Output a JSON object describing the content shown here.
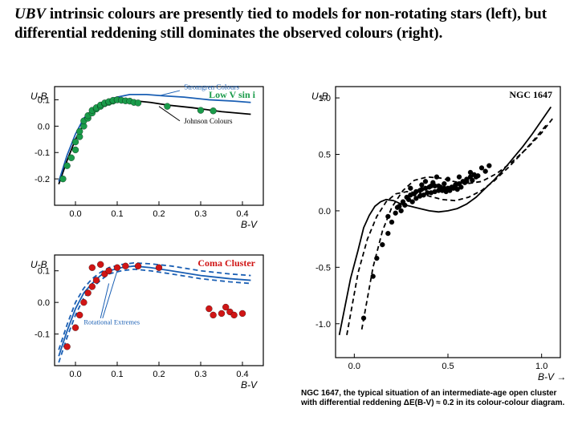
{
  "caption": {
    "html": "<span class='ital'>UBV</span> intrinsic colours are presently tied to models for non-rotating stars (left), but differential reddening still dominates the observed colours (right).",
    "fontsize": 19
  },
  "left_top": {
    "type": "scatter",
    "title": "Low V sin i",
    "title_color": "#1a9b4a",
    "ylabel": "U-B",
    "xlabel": "B-V",
    "xlim": [
      -0.05,
      0.45
    ],
    "ylim": [
      0.15,
      -0.3
    ],
    "xticks": [
      0.0,
      0.1,
      0.2,
      0.3,
      0.4
    ],
    "yticks": [
      -0.2,
      -0.1,
      0.0,
      0.1
    ],
    "curve_johnson": [
      [
        -0.04,
        -0.22
      ],
      [
        -0.02,
        -0.13
      ],
      [
        0.0,
        -0.05
      ],
      [
        0.02,
        0.01
      ],
      [
        0.04,
        0.05
      ],
      [
        0.06,
        0.08
      ],
      [
        0.08,
        0.095
      ],
      [
        0.1,
        0.1
      ],
      [
        0.12,
        0.1
      ],
      [
        0.15,
        0.095
      ],
      [
        0.18,
        0.09
      ],
      [
        0.22,
        0.08
      ],
      [
        0.28,
        0.07
      ],
      [
        0.35,
        0.055
      ],
      [
        0.42,
        0.045
      ]
    ],
    "curve_johnson_color": "#000000",
    "curve_stromgren": [
      [
        -0.04,
        -0.21
      ],
      [
        -0.02,
        -0.11
      ],
      [
        0.0,
        -0.03
      ],
      [
        0.02,
        0.03
      ],
      [
        0.04,
        0.06
      ],
      [
        0.06,
        0.085
      ],
      [
        0.08,
        0.1
      ],
      [
        0.1,
        0.11
      ],
      [
        0.13,
        0.12
      ],
      [
        0.17,
        0.12
      ],
      [
        0.21,
        0.115
      ],
      [
        0.26,
        0.11
      ],
      [
        0.32,
        0.1
      ],
      [
        0.38,
        0.095
      ],
      [
        0.42,
        0.09
      ]
    ],
    "curve_stromgren_color": "#1a5fb4",
    "label_johnson": "Johnson Colours",
    "label_stromgren": "Stromgren Colours",
    "points": [
      [
        -0.03,
        -0.2
      ],
      [
        -0.02,
        -0.15
      ],
      [
        -0.01,
        -0.12
      ],
      [
        0.0,
        -0.09
      ],
      [
        0.0,
        -0.06
      ],
      [
        0.01,
        -0.04
      ],
      [
        0.01,
        -0.02
      ],
      [
        0.02,
        0.0
      ],
      [
        0.02,
        0.02
      ],
      [
        0.03,
        0.03
      ],
      [
        0.03,
        0.04
      ],
      [
        0.04,
        0.05
      ],
      [
        0.04,
        0.06
      ],
      [
        0.05,
        0.065
      ],
      [
        0.05,
        0.07
      ],
      [
        0.06,
        0.075
      ],
      [
        0.06,
        0.08
      ],
      [
        0.07,
        0.085
      ],
      [
        0.07,
        0.088
      ],
      [
        0.08,
        0.09
      ],
      [
        0.08,
        0.093
      ],
      [
        0.09,
        0.095
      ],
      [
        0.09,
        0.098
      ],
      [
        0.1,
        0.1
      ],
      [
        0.1,
        0.1
      ],
      [
        0.11,
        0.098
      ],
      [
        0.12,
        0.096
      ],
      [
        0.13,
        0.095
      ],
      [
        0.14,
        0.09
      ],
      [
        0.15,
        0.088
      ],
      [
        0.22,
        0.075
      ],
      [
        0.3,
        0.06
      ],
      [
        0.33,
        0.058
      ]
    ],
    "point_color": "#1a9b4a",
    "point_size": 4,
    "axis_color": "#000000",
    "handwritten_color": "#000000",
    "background_color": "#ffffff"
  },
  "left_bottom": {
    "type": "scatter",
    "title": "Coma Cluster",
    "title_color": "#d01515",
    "ylabel": "U-B",
    "xlabel": "B-V",
    "xlim": [
      -0.05,
      0.45
    ],
    "ylim": [
      0.15,
      -0.2
    ],
    "xticks": [
      0.0,
      0.1,
      0.2,
      0.3,
      0.4
    ],
    "yticks": [
      -0.1,
      0.0,
      0.1
    ],
    "curve_solid": [
      [
        -0.04,
        -0.17
      ],
      [
        -0.02,
        -0.09
      ],
      [
        0.0,
        -0.02
      ],
      [
        0.02,
        0.03
      ],
      [
        0.04,
        0.06
      ],
      [
        0.06,
        0.085
      ],
      [
        0.08,
        0.1
      ],
      [
        0.11,
        0.11
      ],
      [
        0.14,
        0.115
      ],
      [
        0.18,
        0.11
      ],
      [
        0.23,
        0.1
      ],
      [
        0.3,
        0.085
      ],
      [
        0.37,
        0.075
      ],
      [
        0.42,
        0.07
      ]
    ],
    "curve_solid_color": "#1a5fb4",
    "curve_dash1": [
      [
        -0.04,
        -0.15
      ],
      [
        -0.02,
        -0.07
      ],
      [
        0.0,
        0.0
      ],
      [
        0.02,
        0.045
      ],
      [
        0.04,
        0.075
      ],
      [
        0.06,
        0.095
      ],
      [
        0.08,
        0.11
      ],
      [
        0.11,
        0.12
      ],
      [
        0.14,
        0.125
      ],
      [
        0.18,
        0.122
      ],
      [
        0.23,
        0.115
      ],
      [
        0.3,
        0.1
      ],
      [
        0.37,
        0.09
      ],
      [
        0.42,
        0.085
      ]
    ],
    "curve_dash2": [
      [
        -0.04,
        -0.19
      ],
      [
        -0.02,
        -0.11
      ],
      [
        0.0,
        -0.04
      ],
      [
        0.02,
        0.015
      ],
      [
        0.04,
        0.045
      ],
      [
        0.06,
        0.07
      ],
      [
        0.08,
        0.09
      ],
      [
        0.11,
        0.1
      ],
      [
        0.14,
        0.105
      ],
      [
        0.18,
        0.1
      ],
      [
        0.23,
        0.09
      ],
      [
        0.3,
        0.075
      ],
      [
        0.37,
        0.065
      ],
      [
        0.42,
        0.06
      ]
    ],
    "curve_dash_color": "#1a5fb4",
    "label_rot": "Rotational Extremes",
    "points": [
      [
        -0.02,
        -0.14
      ],
      [
        0.0,
        -0.08
      ],
      [
        0.01,
        -0.04
      ],
      [
        0.02,
        0.0
      ],
      [
        0.03,
        0.03
      ],
      [
        0.04,
        0.05
      ],
      [
        0.05,
        0.07
      ],
      [
        0.07,
        0.09
      ],
      [
        0.08,
        0.1
      ],
      [
        0.1,
        0.11
      ],
      [
        0.12,
        0.115
      ],
      [
        0.15,
        0.115
      ],
      [
        0.2,
        0.11
      ],
      [
        0.04,
        0.11
      ],
      [
        0.06,
        0.12
      ],
      [
        0.32,
        -0.02
      ],
      [
        0.33,
        -0.04
      ],
      [
        0.35,
        -0.035
      ],
      [
        0.36,
        -0.015
      ],
      [
        0.37,
        -0.03
      ],
      [
        0.38,
        -0.04
      ],
      [
        0.4,
        -0.035
      ]
    ],
    "point_color": "#d01515",
    "point_size": 4,
    "axis_color": "#000000",
    "background_color": "#ffffff"
  },
  "right": {
    "type": "scatter",
    "title": "NGC 1647",
    "title_color": "#000000",
    "ylabel": "U-B",
    "xlabel": "B-V →",
    "xlim": [
      -0.1,
      1.1
    ],
    "ylim": [
      1.1,
      -1.3
    ],
    "xticks": [
      0,
      0.5,
      1
    ],
    "yticks": [
      -1,
      -0.5,
      0,
      0.5,
      1
    ],
    "curve_intrinsic": [
      [
        -0.08,
        -1.1
      ],
      [
        -0.02,
        -0.6
      ],
      [
        0.02,
        -0.35
      ],
      [
        0.05,
        -0.15
      ],
      [
        0.08,
        -0.04
      ],
      [
        0.11,
        0.04
      ],
      [
        0.14,
        0.08
      ],
      [
        0.17,
        0.1
      ],
      [
        0.21,
        0.09
      ],
      [
        0.25,
        0.06
      ],
      [
        0.3,
        0.04
      ],
      [
        0.35,
        0.02
      ],
      [
        0.4,
        0.0
      ],
      [
        0.45,
        -0.01
      ],
      [
        0.5,
        0.0
      ],
      [
        0.55,
        0.02
      ],
      [
        0.6,
        0.06
      ],
      [
        0.65,
        0.12
      ],
      [
        0.7,
        0.2
      ],
      [
        0.75,
        0.28
      ],
      [
        0.8,
        0.37
      ],
      [
        0.85,
        0.47
      ],
      [
        0.9,
        0.57
      ],
      [
        0.95,
        0.68
      ],
      [
        1.0,
        0.8
      ],
      [
        1.05,
        0.92
      ]
    ],
    "curve_intrinsic_color": "#000000",
    "curve_dash1": [
      [
        -0.04,
        -1.1
      ],
      [
        0.02,
        -0.55
      ],
      [
        0.07,
        -0.25
      ],
      [
        0.12,
        -0.05
      ],
      [
        0.17,
        0.08
      ],
      [
        0.22,
        0.15
      ],
      [
        0.28,
        0.17
      ],
      [
        0.34,
        0.16
      ],
      [
        0.4,
        0.13
      ],
      [
        0.47,
        0.1
      ],
      [
        0.54,
        0.09
      ],
      [
        0.61,
        0.12
      ],
      [
        0.68,
        0.18
      ],
      [
        0.75,
        0.27
      ],
      [
        0.82,
        0.38
      ],
      [
        0.89,
        0.5
      ],
      [
        0.96,
        0.63
      ],
      [
        1.03,
        0.77
      ]
    ],
    "curve_dash2": [
      [
        0.04,
        -1.05
      ],
      [
        0.1,
        -0.5
      ],
      [
        0.15,
        -0.18
      ],
      [
        0.2,
        0.03
      ],
      [
        0.26,
        0.18
      ],
      [
        0.32,
        0.27
      ],
      [
        0.39,
        0.3
      ],
      [
        0.46,
        0.29
      ],
      [
        0.53,
        0.26
      ],
      [
        0.6,
        0.24
      ],
      [
        0.68,
        0.26
      ],
      [
        0.76,
        0.33
      ],
      [
        0.84,
        0.43
      ],
      [
        0.92,
        0.55
      ],
      [
        1.0,
        0.69
      ],
      [
        1.06,
        0.82
      ]
    ],
    "curve_dash_color": "#000000",
    "points": [
      [
        0.05,
        -0.95
      ],
      [
        0.1,
        -0.58
      ],
      [
        0.12,
        -0.42
      ],
      [
        0.15,
        -0.3
      ],
      [
        0.18,
        -0.2
      ],
      [
        0.2,
        -0.1
      ],
      [
        0.22,
        -0.02
      ],
      [
        0.24,
        0.04
      ],
      [
        0.26,
        0.08
      ],
      [
        0.28,
        0.12
      ],
      [
        0.3,
        0.14
      ],
      [
        0.32,
        0.15
      ],
      [
        0.33,
        0.17
      ],
      [
        0.35,
        0.18
      ],
      [
        0.36,
        0.19
      ],
      [
        0.38,
        0.2
      ],
      [
        0.4,
        0.21
      ],
      [
        0.41,
        0.22
      ],
      [
        0.43,
        0.22
      ],
      [
        0.45,
        0.22
      ],
      [
        0.46,
        0.21
      ],
      [
        0.48,
        0.2
      ],
      [
        0.5,
        0.2
      ],
      [
        0.52,
        0.21
      ],
      [
        0.54,
        0.22
      ],
      [
        0.56,
        0.24
      ],
      [
        0.58,
        0.26
      ],
      [
        0.6,
        0.28
      ],
      [
        0.62,
        0.3
      ],
      [
        0.64,
        0.32
      ],
      [
        0.25,
        0.0
      ],
      [
        0.31,
        0.08
      ],
      [
        0.37,
        0.14
      ],
      [
        0.43,
        0.17
      ],
      [
        0.49,
        0.17
      ],
      [
        0.55,
        0.19
      ],
      [
        0.18,
        -0.05
      ],
      [
        0.23,
        0.03
      ],
      [
        0.29,
        0.1
      ],
      [
        0.35,
        0.13
      ],
      [
        0.41,
        0.16
      ],
      [
        0.47,
        0.18
      ],
      [
        0.53,
        0.2
      ],
      [
        0.59,
        0.25
      ],
      [
        0.65,
        0.3
      ],
      [
        0.7,
        0.35
      ],
      [
        0.27,
        0.05
      ],
      [
        0.33,
        0.11
      ],
      [
        0.39,
        0.16
      ],
      [
        0.45,
        0.18
      ],
      [
        0.51,
        0.18
      ],
      [
        0.57,
        0.21
      ],
      [
        0.63,
        0.27
      ],
      [
        0.3,
        0.2
      ],
      [
        0.36,
        0.23
      ],
      [
        0.42,
        0.25
      ],
      [
        0.48,
        0.24
      ],
      [
        0.54,
        0.23
      ],
      [
        0.6,
        0.26
      ],
      [
        0.66,
        0.31
      ],
      [
        0.44,
        0.3
      ],
      [
        0.5,
        0.28
      ],
      [
        0.38,
        0.26
      ],
      [
        0.56,
        0.3
      ],
      [
        0.62,
        0.34
      ],
      [
        0.68,
        0.38
      ],
      [
        0.72,
        0.4
      ]
    ],
    "point_color": "#000000",
    "point_size": 3,
    "axis_color": "#000000",
    "background_color": "#ffffff",
    "footer": "NGC 1647, the typical situation of an intermediate-age open cluster with differential reddening ΔE(B-V) ≈ 0.2 in its colour-colour diagram."
  }
}
